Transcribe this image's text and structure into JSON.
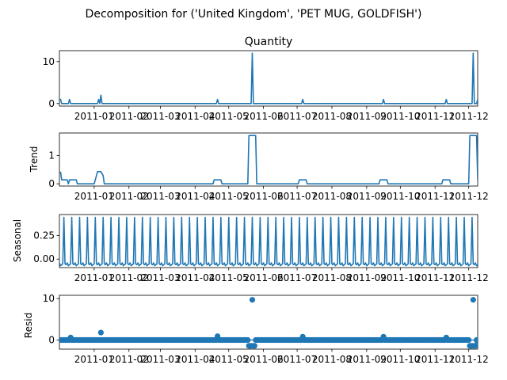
{
  "figure": {
    "suptitle": "Decomposition for ('United Kingdom', 'PET MUG, GOLDFISH')",
    "x_tick_labels": [
      "2011-01",
      "2011-02",
      "2011-03",
      "2011-04",
      "2011-05",
      "2011-06",
      "2011-07",
      "2011-08",
      "2011-09",
      "2011-10",
      "2011-11",
      "2011-12"
    ],
    "line_color": "#1f77b4"
  },
  "chart_data": [
    {
      "type": "line",
      "title": "Quantity",
      "ylabel": "",
      "x_start": "2010-12-01",
      "x_end": "2011-12-09",
      "ylim": [
        -0.6,
        12.6
      ],
      "yticks": [
        0,
        10
      ],
      "ytick_labels": [
        "0",
        "10"
      ],
      "series": [
        {
          "points": [
            [
              "2010-12-01",
              1
            ],
            [
              "2010-12-02",
              1
            ],
            [
              "2010-12-03",
              0
            ],
            [
              "2010-12-09",
              0
            ],
            [
              "2010-12-10",
              1
            ],
            [
              "2010-12-11",
              0
            ],
            [
              "2011-01-04",
              0
            ],
            [
              "2011-01-05",
              1
            ],
            [
              "2011-01-06",
              0
            ],
            [
              "2011-01-07",
              2
            ],
            [
              "2011-01-08",
              0
            ],
            [
              "2011-04-20",
              0
            ],
            [
              "2011-04-21",
              1
            ],
            [
              "2011-04-22",
              0
            ],
            [
              "2011-05-21",
              0
            ],
            [
              "2011-05-22",
              12
            ],
            [
              "2011-05-23",
              0
            ],
            [
              "2011-07-05",
              0
            ],
            [
              "2011-07-06",
              1
            ],
            [
              "2011-07-07",
              0
            ],
            [
              "2011-09-15",
              0
            ],
            [
              "2011-09-16",
              1
            ],
            [
              "2011-09-17",
              0
            ],
            [
              "2011-11-10",
              0
            ],
            [
              "2011-11-11",
              1
            ],
            [
              "2011-11-12",
              0
            ],
            [
              "2011-12-04",
              0
            ],
            [
              "2011-12-05",
              12
            ],
            [
              "2011-12-06",
              0
            ],
            [
              "2011-12-08",
              0
            ],
            [
              "2011-12-09",
              1
            ]
          ]
        }
      ]
    },
    {
      "type": "line",
      "title": "",
      "ylabel": "Trend",
      "x_start": "2010-12-01",
      "x_end": "2011-12-09",
      "ylim": [
        -0.08,
        1.8
      ],
      "yticks": [
        0,
        1
      ],
      "ytick_labels": [
        "0",
        "1"
      ],
      "series": [
        {
          "points": [
            [
              "2010-12-02",
              0.43
            ],
            [
              "2010-12-03",
              0.14
            ],
            [
              "2010-12-07",
              0.14
            ],
            [
              "2010-12-08",
              0.14
            ],
            [
              "2010-12-09",
              0.0
            ],
            [
              "2010-12-10",
              0.14
            ],
            [
              "2010-12-16",
              0.14
            ],
            [
              "2010-12-17",
              0.0
            ],
            [
              "2011-01-01",
              0.0
            ],
            [
              "2011-01-02",
              0.14
            ],
            [
              "2011-01-04",
              0.43
            ],
            [
              "2011-01-07",
              0.43
            ],
            [
              "2011-01-09",
              0.29
            ],
            [
              "2011-01-10",
              0.0
            ],
            [
              "2011-04-17",
              0.0
            ],
            [
              "2011-04-18",
              0.14
            ],
            [
              "2011-04-24",
              0.14
            ],
            [
              "2011-04-25",
              0.0
            ],
            [
              "2011-05-18",
              0.0
            ],
            [
              "2011-05-19",
              1.71
            ],
            [
              "2011-05-25",
              1.71
            ],
            [
              "2011-05-26",
              0.0
            ],
            [
              "2011-07-02",
              0.0
            ],
            [
              "2011-07-03",
              0.14
            ],
            [
              "2011-07-09",
              0.14
            ],
            [
              "2011-07-10",
              0.0
            ],
            [
              "2011-09-12",
              0.0
            ],
            [
              "2011-09-13",
              0.14
            ],
            [
              "2011-09-19",
              0.14
            ],
            [
              "2011-09-20",
              0.0
            ],
            [
              "2011-11-07",
              0.0
            ],
            [
              "2011-11-08",
              0.14
            ],
            [
              "2011-11-14",
              0.14
            ],
            [
              "2011-11-15",
              0.0
            ],
            [
              "2011-12-01",
              0.0
            ],
            [
              "2011-12-02",
              1.71
            ],
            [
              "2011-12-08",
              1.71
            ],
            [
              "2011-12-09",
              0.14
            ]
          ]
        }
      ]
    },
    {
      "type": "line",
      "title": "",
      "ylabel": "Seasonal",
      "x_start": "2010-12-01",
      "x_end": "2011-12-09",
      "ylim": [
        -0.09,
        0.47
      ],
      "yticks": [
        0.0,
        0.25
      ],
      "ytick_labels": [
        "0.00",
        "0.25"
      ],
      "series": [
        {
          "period_days": 7,
          "first_peak": "2010-12-05",
          "weekly_pattern": [
            0.44,
            -0.05,
            -0.06,
            -0.04,
            -0.07,
            -0.06,
            -0.05
          ]
        }
      ]
    },
    {
      "type": "scatter",
      "title": "",
      "ylabel": "Resid",
      "x_start": "2010-12-01",
      "x_end": "2011-12-09",
      "ylim": [
        -2.2,
        10.8
      ],
      "yticks": [
        0,
        10
      ],
      "ytick_labels": [
        "0",
        "10"
      ],
      "series": [
        {
          "baseline": 0,
          "outliers": [
            [
              "2010-12-11",
              0.6
            ],
            [
              "2011-01-07",
              1.8
            ],
            [
              "2011-04-21",
              0.9
            ],
            [
              "2011-05-19",
              -1.4
            ],
            [
              "2011-05-20",
              -1.4
            ],
            [
              "2011-05-21",
              -1.4
            ],
            [
              "2011-05-22",
              9.7
            ],
            [
              "2011-05-23",
              -1.4
            ],
            [
              "2011-05-24",
              -1.4
            ],
            [
              "2011-07-06",
              0.8
            ],
            [
              "2011-09-16",
              0.8
            ],
            [
              "2011-11-11",
              0.6
            ],
            [
              "2011-12-02",
              -1.4
            ],
            [
              "2011-12-03",
              -1.4
            ],
            [
              "2011-12-04",
              -1.4
            ],
            [
              "2011-12-05",
              9.7
            ],
            [
              "2011-12-06",
              -1.4
            ],
            [
              "2011-12-07",
              -1.4
            ],
            [
              "2011-12-09",
              -0.5
            ]
          ]
        }
      ]
    }
  ]
}
